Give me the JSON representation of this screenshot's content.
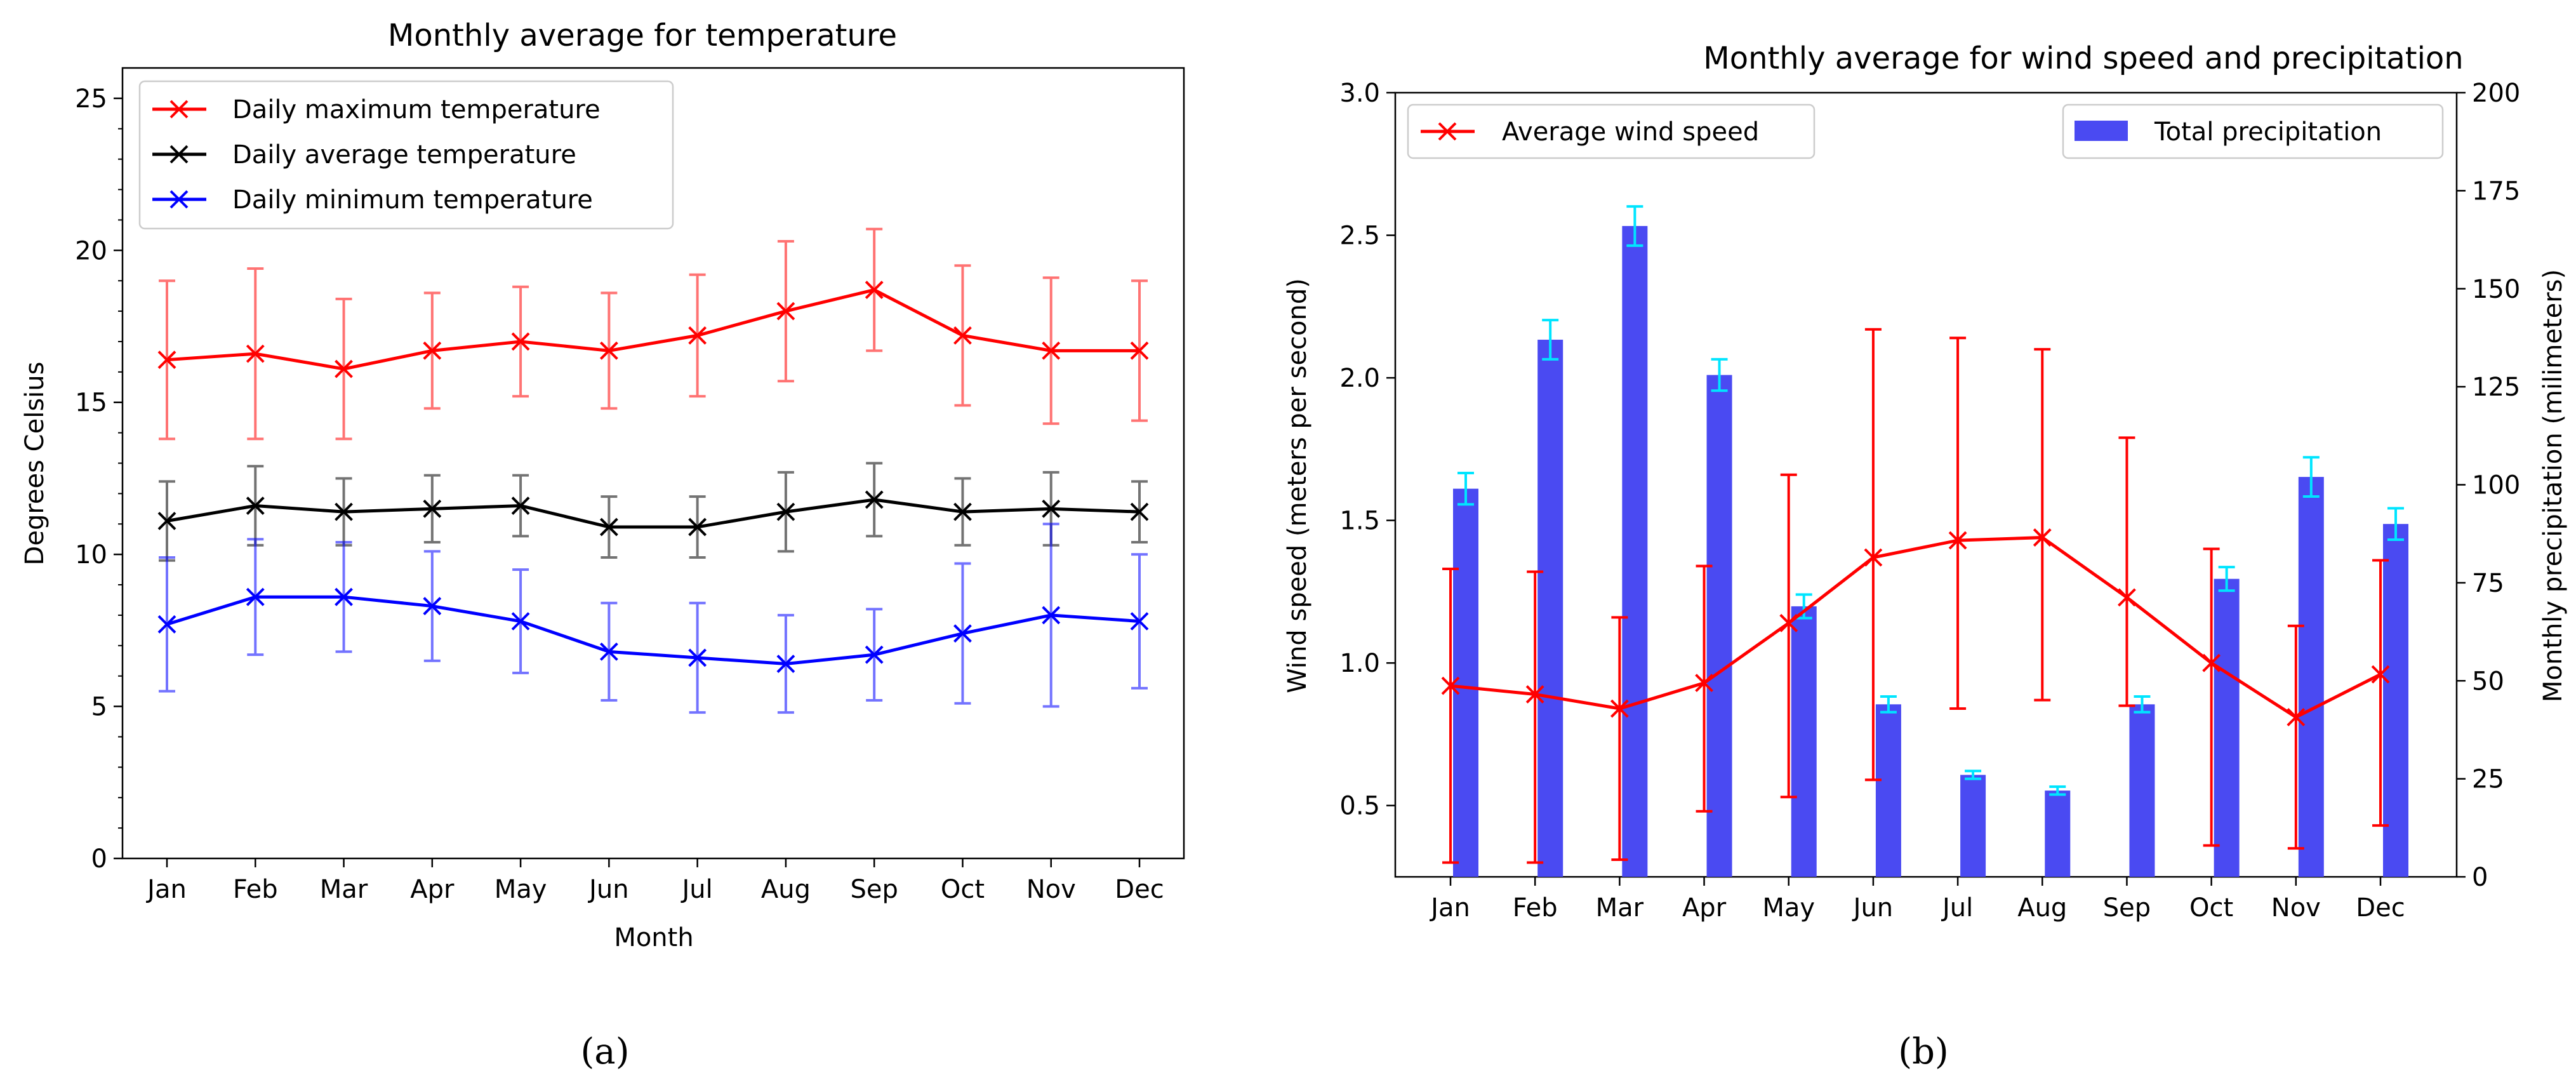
{
  "chart_data": [
    {
      "id": "a",
      "type": "line",
      "title": "Monthly average for temperature",
      "xlabel": "Month",
      "ylabel": "Degrees Celsius",
      "ylim": [
        0,
        26
      ],
      "yticks": [
        0,
        5,
        10,
        15,
        20,
        25
      ],
      "categories": [
        "Jan",
        "Feb",
        "Mar",
        "Apr",
        "May",
        "Jun",
        "Jul",
        "Aug",
        "Sep",
        "Oct",
        "Nov",
        "Dec"
      ],
      "legend_location": "top-left",
      "caption": "(a)",
      "series": [
        {
          "name": "Daily maximum temperature",
          "color": "#ff0000",
          "values": [
            16.4,
            16.6,
            16.1,
            16.7,
            17.0,
            16.7,
            17.2,
            18.0,
            18.7,
            17.2,
            16.7,
            16.7
          ],
          "err": [
            2.6,
            2.8,
            2.3,
            1.9,
            1.8,
            1.9,
            2.0,
            2.3,
            2.0,
            2.3,
            2.4,
            2.3
          ]
        },
        {
          "name": "Daily average temperature",
          "color": "#000000",
          "values": [
            11.1,
            11.6,
            11.4,
            11.5,
            11.6,
            10.9,
            10.9,
            11.4,
            11.8,
            11.4,
            11.5,
            11.4
          ],
          "err": [
            1.3,
            1.3,
            1.1,
            1.1,
            1.0,
            1.0,
            1.0,
            1.3,
            1.2,
            1.1,
            1.2,
            1.0
          ]
        },
        {
          "name": "Daily minimum temperature",
          "color": "#0000ff",
          "values": [
            7.7,
            8.6,
            8.6,
            8.3,
            7.8,
            6.8,
            6.6,
            6.4,
            6.7,
            7.4,
            8.0,
            7.8
          ],
          "err": [
            2.2,
            1.9,
            1.8,
            1.8,
            1.7,
            1.6,
            1.8,
            1.6,
            1.5,
            2.3,
            3.0,
            2.2
          ]
        }
      ]
    },
    {
      "id": "b",
      "type": "bar+line",
      "title": "Monthly average for wind speed and precipitation",
      "categories": [
        "Jan",
        "Feb",
        "Mar",
        "Apr",
        "May",
        "Jun",
        "Jul",
        "Aug",
        "Sep",
        "Oct",
        "Nov",
        "Dec"
      ],
      "ylabel_left": "Wind speed (meters per second)",
      "ylabel_right": "Monthly precipitation (milimeters)",
      "ylim_left": [
        0.25,
        3.0
      ],
      "yticks_left": [
        "0.5",
        "1.0",
        "1.5",
        "2.0",
        "2.5",
        "3.0"
      ],
      "ylim_right": [
        0,
        200
      ],
      "yticks_right": [
        0,
        25,
        50,
        75,
        100,
        125,
        150,
        175,
        200
      ],
      "caption": "(b)",
      "line": {
        "name": "Average wind speed",
        "color": "#ff0000",
        "legend_location": "top-left",
        "values": [
          0.92,
          0.89,
          0.84,
          0.93,
          1.14,
          1.37,
          1.43,
          1.44,
          1.23,
          1.0,
          0.81,
          0.96
        ],
        "err_low": [
          0.62,
          0.59,
          0.53,
          0.45,
          0.61,
          0.78,
          0.59,
          0.57,
          0.38,
          0.64,
          0.46,
          0.53
        ],
        "err_high": [
          0.41,
          0.43,
          0.32,
          0.41,
          0.52,
          0.8,
          0.71,
          0.66,
          0.56,
          0.4,
          0.32,
          0.4
        ]
      },
      "bars": {
        "name": "Total precipitation",
        "color": "#4a4af2",
        "error_color": "#00e5ff",
        "legend_location": "top-right",
        "values": [
          99,
          137,
          166,
          128,
          69,
          44,
          26,
          22,
          44,
          76,
          102,
          90
        ],
        "err": [
          4,
          5,
          5,
          4,
          3,
          2,
          1,
          1,
          2,
          3,
          5,
          4
        ]
      }
    }
  ]
}
